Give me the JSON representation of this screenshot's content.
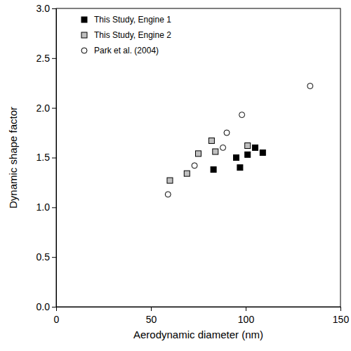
{
  "chart_data": {
    "type": "scatter",
    "x_label": "Aerodynamic diameter (nm)",
    "y_label": "Dynamic shape factor",
    "xlim": [
      0,
      150
    ],
    "xticks": [
      0,
      50,
      100,
      150
    ],
    "ylim": [
      0,
      3
    ],
    "yticks": [
      {
        "value": 0,
        "label": "0.0"
      },
      0.5,
      {
        "value": 1,
        "label": "1.0"
      },
      1.5,
      {
        "value": 2,
        "label": "2.0"
      },
      2.5,
      {
        "value": 3,
        "label": "3.0"
      }
    ],
    "grid": false,
    "legend": "upper-left",
    "series": [
      {
        "name": "This Study, Engine 1",
        "color": "#000000",
        "marker": "square",
        "x": [
          83,
          95,
          97,
          101,
          105,
          109
        ],
        "values": [
          1.38,
          1.5,
          1.4,
          1.53,
          1.6,
          1.55
        ]
      },
      {
        "name": "This Study, Engine 2",
        "color": "#c0c0c0",
        "marker": "square",
        "x": [
          60,
          69,
          75,
          82,
          84,
          101
        ],
        "values": [
          1.27,
          1.34,
          1.54,
          1.67,
          1.56,
          1.62
        ]
      },
      {
        "name": "Park et al. (2004)",
        "color": "#ffffff",
        "marker": "circle",
        "x": [
          59,
          73,
          88,
          90,
          98,
          134
        ],
        "values": [
          1.13,
          1.42,
          1.6,
          1.75,
          1.93,
          2.22
        ]
      }
    ]
  }
}
